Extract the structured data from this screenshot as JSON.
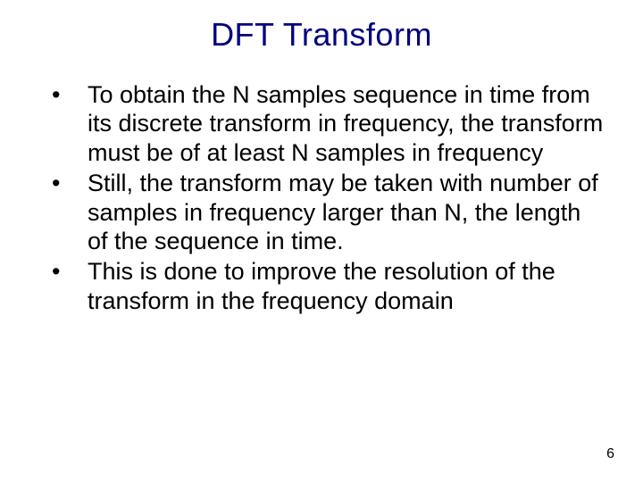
{
  "title": "DFT Transform",
  "bullets": [
    "To obtain the N samples sequence in time from its discrete transform in frequency, the transform must be of at least N samples in frequency",
    "Still, the transform may be taken with number of samples in frequency larger than N, the length of the sequence in time.",
    "This is done to improve the resolution of the transform in the frequency domain"
  ],
  "page_number": "6",
  "colors": {
    "title": "#000080",
    "body": "#000000",
    "background": "#ffffff"
  },
  "font_sizes": {
    "title": 36,
    "body": 27,
    "page_num": 16
  }
}
